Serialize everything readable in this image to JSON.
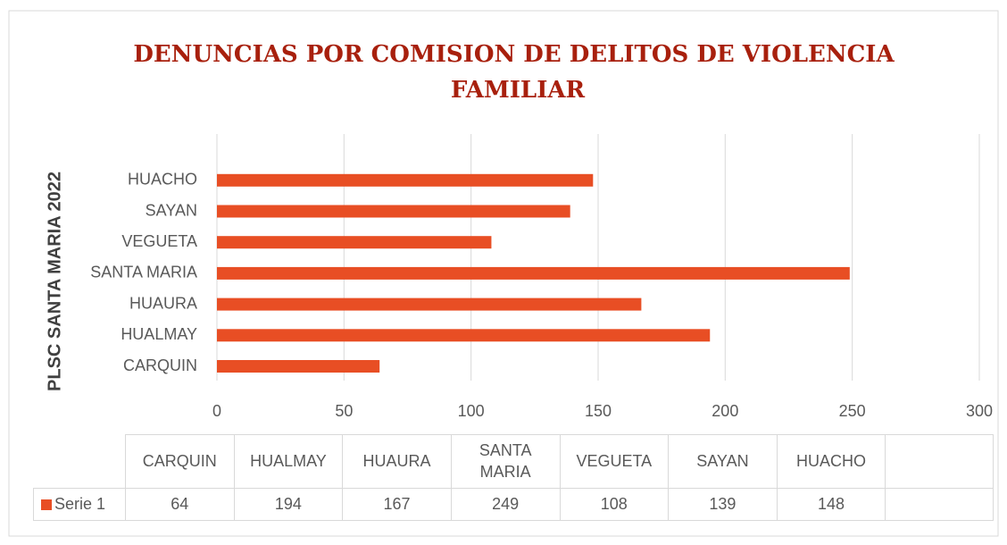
{
  "chart_data": {
    "type": "bar",
    "orientation": "horizontal",
    "title": "DENUNCIAS POR COMISION DE DELITOS DE VIOLENCIA FAMILIAR",
    "y_label": "PLSC SANTA MARIA 2022",
    "categories": [
      "CARQUIN",
      "HUALMAY",
      "HUAURA",
      "SANTA MARIA",
      "VEGUETA",
      "SAYAN",
      "HUACHO"
    ],
    "series": [
      {
        "name": "Serie 1",
        "color": "#e84e24",
        "values": [
          64,
          194,
          167,
          249,
          108,
          139,
          148
        ]
      }
    ],
    "xlim": [
      0,
      300
    ],
    "xticks": [
      0,
      50,
      100,
      150,
      200,
      250,
      300
    ],
    "grid": true,
    "data_table": true
  }
}
